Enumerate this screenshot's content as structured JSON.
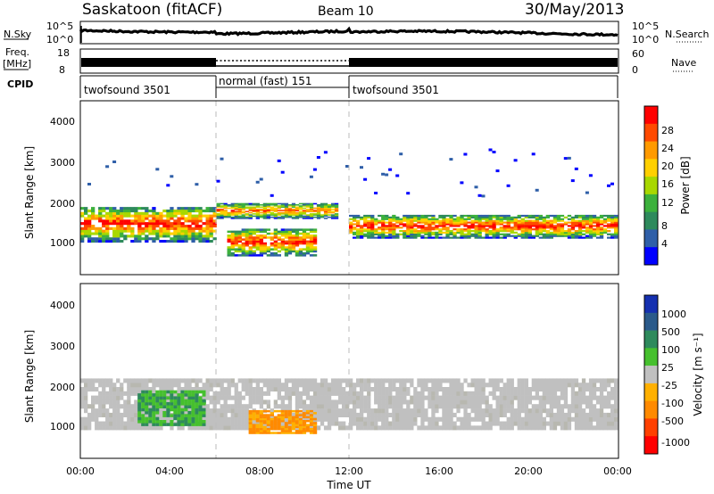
{
  "header": {
    "title": "Saskatoon (fitACF)",
    "beam": "Beam 10",
    "date": "30/May/2013"
  },
  "top_panels": {
    "nsky": {
      "label": "N.Sky",
      "left_ticks": [
        "10^5",
        "10^0"
      ],
      "right_label": "N.Search",
      "right_ticks": [
        "10^5",
        "10^0"
      ]
    },
    "freq": {
      "label_line1": "Freq.",
      "label_line2": "[MHz]",
      "left_ticks": [
        "18",
        "8"
      ],
      "right_label": "Nave",
      "right_ticks": [
        "60",
        "0"
      ]
    },
    "cpid": {
      "label": "CPID",
      "segments": [
        {
          "label": "twofsound 3501",
          "start_hour": 0,
          "end_hour": 6
        },
        {
          "label": "normal (fast) 151",
          "start_hour": 6,
          "end_hour": 12
        },
        {
          "label": "twofsound 3501",
          "start_hour": 12,
          "end_hour": 24
        }
      ]
    }
  },
  "power_colorbar": {
    "label": "Power [dB]",
    "ticks": [
      "28",
      "24",
      "20",
      "16",
      "12",
      "8",
      "4"
    ],
    "colors": [
      "#ff0000",
      "#ff4a00",
      "#ff9a00",
      "#ffd000",
      "#a8d800",
      "#3cb13c",
      "#2e8a5c",
      "#2f5fa8",
      "#0000ff"
    ]
  },
  "velocity_colorbar": {
    "label": "Velocity [m s⁻¹]",
    "ticks": [
      "1000",
      "500",
      "100",
      "25",
      "-25",
      "-100",
      "-500",
      "-1000"
    ],
    "colors": [
      "#1530b0",
      "#2a5a8a",
      "#2e8a5c",
      "#46c02e",
      "#c0c0c0",
      "#ffb000",
      "#ff8a00",
      "#ff4000",
      "#ff0000"
    ]
  },
  "chart_data": [
    {
      "type": "heatmap",
      "title": "Power",
      "ylabel": "Slant Range [km]",
      "xlim_hours": [
        0,
        24
      ],
      "ylim_km": [
        180,
        4600
      ],
      "yticks": [
        "4000",
        "3000",
        "2000",
        "1000"
      ],
      "xticks": [
        "00:00",
        "04:00",
        "08:00",
        "12:00",
        "16:00",
        "20:00",
        "00:00"
      ],
      "bands": [
        {
          "description": "main echo band",
          "hours": [
            0,
            6
          ],
          "range_km": [
            1000,
            1900
          ],
          "peak_db": 28
        },
        {
          "description": "intense near-range patch",
          "hours": [
            6.5,
            10.5
          ],
          "range_km": [
            650,
            1350
          ],
          "peak_db": 28
        },
        {
          "description": "upper band",
          "hours": [
            6,
            11.5
          ],
          "range_km": [
            1600,
            2000
          ],
          "peak_db": 24
        },
        {
          "description": "main echo band",
          "hours": [
            12,
            24
          ],
          "range_km": [
            1100,
            1700
          ],
          "peak_db": 28
        }
      ]
    },
    {
      "type": "heatmap",
      "title": "Velocity",
      "ylabel": "Slant Range [km]",
      "xlabel": "Time UT",
      "xlim_hours": [
        0,
        24
      ],
      "ylim_km": [
        180,
        4600
      ],
      "yticks": [
        "4000",
        "3000",
        "2000",
        "1000"
      ],
      "xticks": [
        "00:00",
        "04:00",
        "08:00",
        "12:00",
        "16:00",
        "20:00",
        "00:00"
      ],
      "bands": [
        {
          "description": "ground scatter",
          "hours": [
            0,
            24
          ],
          "range_km": [
            900,
            2200
          ],
          "velocity_ms": 0
        },
        {
          "description": "negative velocity patch",
          "hours": [
            7.5,
            10.5
          ],
          "range_km": [
            800,
            1400
          ],
          "velocity_ms": -200
        },
        {
          "description": "positive velocity arc",
          "hours": [
            2.5,
            5.5
          ],
          "range_km": [
            1000,
            1900
          ],
          "velocity_ms": 150
        }
      ]
    }
  ],
  "axis_title_x": "Time UT"
}
